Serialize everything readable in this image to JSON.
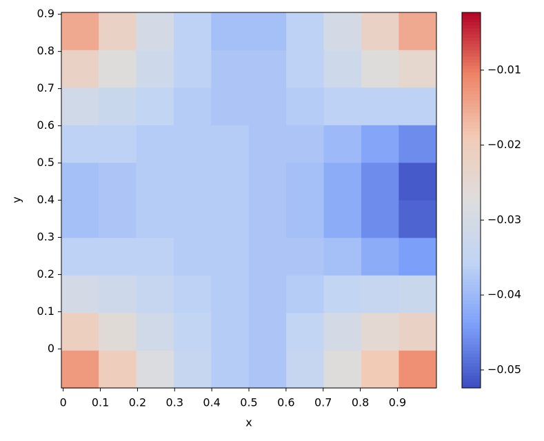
{
  "chart_data": {
    "type": "heatmap",
    "cmap": "coolwarm",
    "x_label": "x",
    "y_label": "y",
    "x": [
      0.045,
      0.146,
      0.247,
      0.348,
      0.449,
      0.55,
      0.651,
      0.752,
      0.853,
      0.954
    ],
    "y": [
      0.854,
      0.753,
      0.652,
      0.551,
      0.45,
      0.349,
      0.248,
      0.147,
      0.046,
      -0.055
    ],
    "z": [
      [
        -0.015,
        -0.022,
        -0.03,
        -0.036,
        -0.039,
        -0.039,
        -0.036,
        -0.03,
        -0.022,
        -0.015
      ],
      [
        -0.022,
        -0.027,
        -0.032,
        -0.036,
        -0.038,
        -0.038,
        -0.036,
        -0.032,
        -0.027,
        -0.024
      ],
      [
        -0.031,
        -0.033,
        -0.035,
        -0.037,
        -0.038,
        -0.038,
        -0.037,
        -0.036,
        -0.036,
        -0.036
      ],
      [
        -0.036,
        -0.036,
        -0.037,
        -0.037,
        -0.037,
        -0.038,
        -0.038,
        -0.04,
        -0.043,
        -0.046
      ],
      [
        -0.039,
        -0.038,
        -0.037,
        -0.037,
        -0.037,
        -0.038,
        -0.039,
        -0.042,
        -0.046,
        -0.051
      ],
      [
        -0.039,
        -0.038,
        -0.037,
        -0.037,
        -0.037,
        -0.038,
        -0.039,
        -0.042,
        -0.046,
        -0.05
      ],
      [
        -0.036,
        -0.036,
        -0.036,
        -0.037,
        -0.037,
        -0.038,
        -0.038,
        -0.039,
        -0.042,
        -0.044
      ],
      [
        -0.03,
        -0.032,
        -0.034,
        -0.036,
        -0.037,
        -0.038,
        -0.037,
        -0.035,
        -0.034,
        -0.033
      ],
      [
        -0.021,
        -0.026,
        -0.031,
        -0.035,
        -0.037,
        -0.038,
        -0.035,
        -0.03,
        -0.025,
        -0.022
      ],
      [
        -0.013,
        -0.02,
        -0.028,
        -0.034,
        -0.037,
        -0.038,
        -0.034,
        -0.027,
        -0.019,
        -0.012
      ]
    ],
    "xlim": [
      -0.005,
      1.005
    ],
    "ylim": [
      -0.105,
      0.905
    ],
    "xticks": [
      0,
      0.1,
      0.2,
      0.3,
      0.4,
      0.5,
      0.6,
      0.7,
      0.8,
      0.9
    ],
    "yticks": [
      0,
      0.1,
      0.2,
      0.3,
      0.4,
      0.5,
      0.6,
      0.7,
      0.8,
      0.9
    ],
    "clim": [
      -0.0524,
      -0.0023
    ],
    "cticks": [
      {
        "value": -0.05,
        "label": "−0.05"
      },
      {
        "value": -0.04,
        "label": "−0.04"
      },
      {
        "value": -0.03,
        "label": "−0.03"
      },
      {
        "value": -0.02,
        "label": "−0.02"
      },
      {
        "value": -0.01,
        "label": "−0.01"
      }
    ]
  }
}
